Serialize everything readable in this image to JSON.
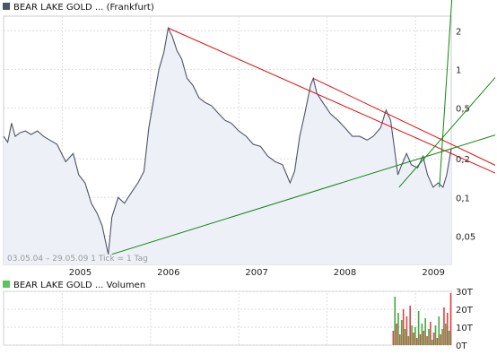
{
  "chart_data": [
    {
      "type": "line",
      "title": "BEAR LAKE GOLD ... (Frankfurt)",
      "legend_color": "#4d5466",
      "line_color": "#4d5466",
      "fill_color": "#eef0f8",
      "y_scale": "log",
      "ylim": [
        0.03,
        2.6
      ],
      "y_ticks": [
        0.05,
        0.1,
        0.2,
        0.5,
        1,
        2
      ],
      "y_tick_labels": [
        "0,05",
        "0,1",
        "0,2",
        "0,5",
        "1",
        "2"
      ],
      "xlim": [
        "2004-05-03",
        "2009-05-29"
      ],
      "x_ticks": [
        "2005-01-01",
        "2006-01-01",
        "2007-01-01",
        "2008-01-01",
        "2009-01-01"
      ],
      "x_tick_labels": [
        "2005",
        "2006",
        "2007",
        "2008",
        "2009"
      ],
      "date_range_label": "03.05.04 – 29.05.09   1 Tick = 1 Tag",
      "series": [
        {
          "points": [
            [
              "2004-05-03",
              0.3
            ],
            [
              "2004-05-20",
              0.27
            ],
            [
              "2004-06-05",
              0.38
            ],
            [
              "2004-06-20",
              0.3
            ],
            [
              "2004-07-10",
              0.32
            ],
            [
              "2004-08-01",
              0.33
            ],
            [
              "2004-08-25",
              0.31
            ],
            [
              "2004-09-20",
              0.33
            ],
            [
              "2004-10-15",
              0.3
            ],
            [
              "2004-11-10",
              0.28
            ],
            [
              "2004-12-10",
              0.26
            ],
            [
              "2005-01-15",
              0.19
            ],
            [
              "2005-02-15",
              0.22
            ],
            [
              "2005-03-10",
              0.15
            ],
            [
              "2005-04-05",
              0.13
            ],
            [
              "2005-05-01",
              0.09
            ],
            [
              "2005-05-25",
              0.075
            ],
            [
              "2005-06-15",
              0.06
            ],
            [
              "2005-07-10",
              0.036
            ],
            [
              "2005-07-25",
              0.07
            ],
            [
              "2005-08-20",
              0.1
            ],
            [
              "2005-09-15",
              0.09
            ],
            [
              "2005-10-15",
              0.11
            ],
            [
              "2005-11-10",
              0.13
            ],
            [
              "2005-12-05",
              0.16
            ],
            [
              "2005-12-25",
              0.35
            ],
            [
              "2006-01-15",
              0.6
            ],
            [
              "2006-02-05",
              1.0
            ],
            [
              "2006-02-25",
              1.35
            ],
            [
              "2006-03-15",
              2.1
            ],
            [
              "2006-04-01",
              1.8
            ],
            [
              "2006-04-20",
              1.4
            ],
            [
              "2006-05-10",
              1.2
            ],
            [
              "2006-06-01",
              0.85
            ],
            [
              "2006-06-25",
              0.75
            ],
            [
              "2006-07-20",
              0.6
            ],
            [
              "2006-08-15",
              0.55
            ],
            [
              "2006-09-10",
              0.52
            ],
            [
              "2006-10-10",
              0.45
            ],
            [
              "2006-11-05",
              0.4
            ],
            [
              "2006-12-01",
              0.38
            ],
            [
              "2007-01-01",
              0.33
            ],
            [
              "2007-02-01",
              0.3
            ],
            [
              "2007-03-01",
              0.26
            ],
            [
              "2007-04-01",
              0.25
            ],
            [
              "2007-05-01",
              0.21
            ],
            [
              "2007-06-01",
              0.19
            ],
            [
              "2007-07-01",
              0.18
            ],
            [
              "2007-08-01",
              0.13
            ],
            [
              "2007-08-20",
              0.16
            ],
            [
              "2007-09-10",
              0.3
            ],
            [
              "2007-10-01",
              0.45
            ],
            [
              "2007-10-25",
              0.75
            ],
            [
              "2007-11-05",
              0.85
            ],
            [
              "2007-11-20",
              0.65
            ],
            [
              "2007-12-15",
              0.55
            ],
            [
              "2008-01-15",
              0.45
            ],
            [
              "2008-02-15",
              0.4
            ],
            [
              "2008-03-15",
              0.35
            ],
            [
              "2008-04-15",
              0.3
            ],
            [
              "2008-05-15",
              0.3
            ],
            [
              "2008-06-15",
              0.28
            ],
            [
              "2008-07-10",
              0.3
            ],
            [
              "2008-08-10",
              0.35
            ],
            [
              "2008-09-01",
              0.48
            ],
            [
              "2008-09-20",
              0.4
            ],
            [
              "2008-10-05",
              0.25
            ],
            [
              "2008-10-20",
              0.15
            ],
            [
              "2008-11-05",
              0.18
            ],
            [
              "2008-11-25",
              0.22
            ],
            [
              "2008-12-15",
              0.18
            ],
            [
              "2009-01-10",
              0.17
            ],
            [
              "2009-02-01",
              0.21
            ],
            [
              "2009-02-20",
              0.15
            ],
            [
              "2009-03-15",
              0.12
            ],
            [
              "2009-04-05",
              0.13
            ],
            [
              "2009-04-25",
              0.12
            ],
            [
              "2009-05-10",
              0.15
            ],
            [
              "2009-05-29",
              0.24
            ]
          ]
        }
      ],
      "trend_lines": [
        {
          "color": "#dd1111",
          "from": [
            "2006-03-15",
            2.1
          ],
          "to": [
            "2009-05-29",
            0.22
          ]
        },
        {
          "color": "#dd1111",
          "from": [
            "2007-11-05",
            0.85
          ],
          "to": [
            "2009-05-29",
            0.26
          ]
        },
        {
          "color": "#118811",
          "from": [
            "2005-07-25",
            0.036
          ],
          "to": [
            "2009-05-29",
            0.24
          ]
        },
        {
          "color": "#118811",
          "from": [
            "2008-10-25",
            0.12
          ],
          "to": [
            "2009-05-29",
            0.35
          ]
        },
        {
          "color": "#118811",
          "from": [
            "2009-04-10",
            0.12
          ],
          "to": [
            "2009-05-29",
            3.0
          ]
        }
      ]
    },
    {
      "type": "bar",
      "title": "BEAR LAKE GOLD ... Volumen",
      "legend_color": "#5cc45c",
      "y_ticks": [
        0,
        10,
        20,
        30
      ],
      "y_tick_labels": [
        "0T",
        "10T",
        "20T",
        "30T"
      ],
      "ylim": [
        0,
        30
      ],
      "bar_colors": [
        "#dd4444",
        "#44aa44"
      ],
      "series": [
        {
          "points": [
            [
              "2008-10-01",
              8
            ],
            [
              "2008-10-08",
              27
            ],
            [
              "2008-10-15",
              12
            ],
            [
              "2008-10-22",
              18
            ],
            [
              "2008-10-29",
              6
            ],
            [
              "2008-11-05",
              14
            ],
            [
              "2008-11-12",
              20
            ],
            [
              "2008-11-19",
              9
            ],
            [
              "2008-11-26",
              16
            ],
            [
              "2008-12-03",
              5
            ],
            [
              "2008-12-10",
              22
            ],
            [
              "2008-12-17",
              11
            ],
            [
              "2008-12-24",
              7
            ],
            [
              "2008-12-31",
              10
            ],
            [
              "2009-01-07",
              4
            ],
            [
              "2009-01-14",
              19
            ],
            [
              "2009-01-21",
              6
            ],
            [
              "2009-01-28",
              12
            ],
            [
              "2009-02-04",
              8
            ],
            [
              "2009-02-11",
              15
            ],
            [
              "2009-02-18",
              5
            ],
            [
              "2009-02-25",
              9
            ],
            [
              "2009-03-04",
              13
            ],
            [
              "2009-03-11",
              3
            ],
            [
              "2009-03-18",
              7
            ],
            [
              "2009-03-25",
              11
            ],
            [
              "2009-04-01",
              4
            ],
            [
              "2009-04-08",
              16
            ],
            [
              "2009-04-15",
              6
            ],
            [
              "2009-04-22",
              9
            ],
            [
              "2009-04-29",
              21
            ],
            [
              "2009-05-06",
              12
            ],
            [
              "2009-05-13",
              18
            ],
            [
              "2009-05-20",
              8
            ],
            [
              "2009-05-27",
              29
            ]
          ]
        }
      ]
    }
  ]
}
